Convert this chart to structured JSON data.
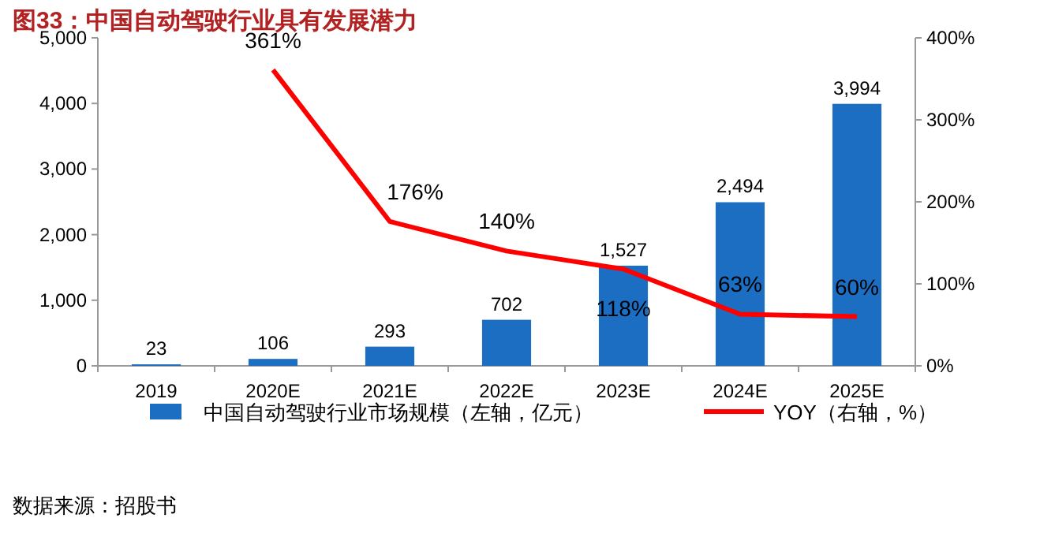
{
  "chart_data": {
    "type": "bar",
    "title": "图33：中国自动驾驶行业具有发展潜力",
    "categories": [
      "2019",
      "2020E",
      "2021E",
      "2022E",
      "2023E",
      "2024E",
      "2025E"
    ],
    "series": [
      {
        "name": "中国自动驾驶行业市场规模（左轴，亿元）",
        "color": "#1b6ec2",
        "values": [
          23,
          106,
          293,
          702,
          1527,
          2494,
          3994
        ],
        "value_labels": [
          "23",
          "106",
          "293",
          "702",
          "1,527",
          "2,494",
          "3,994"
        ]
      },
      {
        "name": "YOY（右轴，%）",
        "type": "line",
        "axis": "y2",
        "color": "#ff0000",
        "values": [
          null,
          361,
          176,
          140,
          118,
          63,
          60
        ],
        "value_labels": [
          null,
          "361%",
          "176%",
          "140%",
          "118%",
          "63%",
          "60%"
        ]
      }
    ],
    "ylim": [
      0,
      5000
    ],
    "yticks": [
      {
        "value": 0,
        "label": "0"
      },
      {
        "value": 1000,
        "label": "1,000"
      },
      {
        "value": 2000,
        "label": "2,000"
      },
      {
        "value": 3000,
        "label": "3,000"
      },
      {
        "value": 4000,
        "label": "4,000"
      },
      {
        "value": 5000,
        "label": "5,000"
      }
    ],
    "y2lim": [
      0,
      400
    ],
    "y2ticks": [
      {
        "value": 0,
        "label": "0%"
      },
      {
        "value": 100,
        "label": "100%"
      },
      {
        "value": 200,
        "label": "200%"
      },
      {
        "value": 300,
        "label": "300%"
      },
      {
        "value": 400,
        "label": "400%"
      }
    ],
    "legend": "bottom",
    "annotations": [
      "数据来源：招股书"
    ]
  }
}
